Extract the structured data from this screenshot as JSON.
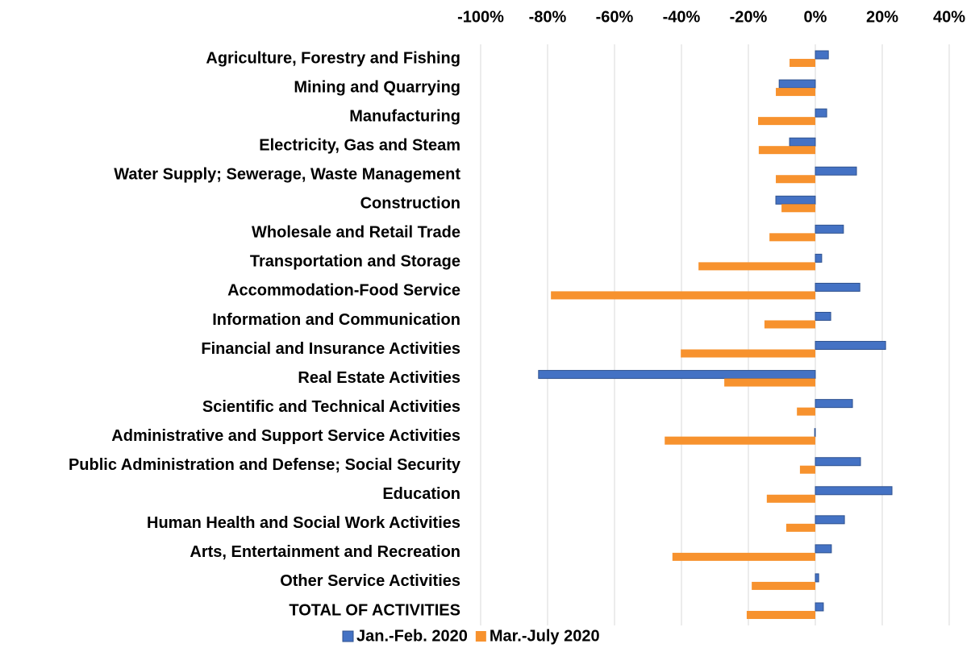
{
  "chart_data": {
    "type": "hbar",
    "categories": [
      "Agriculture, Forestry and Fishing",
      "Mining and Quarrying",
      "Manufacturing",
      "Electricity, Gas and Steam",
      "Water Supply; Sewerage, Waste Management",
      "Construction",
      "Wholesale and Retail Trade",
      "Transportation and Storage",
      "Accommodation-Food Service",
      "Information and Communication",
      "Financial and Insurance Activities",
      "Real Estate Activities",
      "Scientific and Technical Activities",
      "Administrative and Support Service Activities",
      "Public Administration and Defense; Social Security",
      "Education",
      "Human Health and Social Work Activities",
      "Arts, Entertainment and Recreation",
      "Other Service Activities",
      "TOTAL OF ACTIVITIES"
    ],
    "series": [
      {
        "name": "Jan.-Feb. 2020",
        "color": "#4472c4",
        "values": [
          3.9,
          -10.8,
          3.4,
          -7.7,
          12.3,
          -11.8,
          8.4,
          1.9,
          13.3,
          4.6,
          21,
          -82.7,
          11.1,
          -0.2,
          13.5,
          22.9,
          8.7,
          4.8,
          1,
          2.4
        ]
      },
      {
        "name": "Mar.-July 2020",
        "color": "#f7922e",
        "values": [
          -7.7,
          -11.8,
          -17.1,
          -16.9,
          -11.8,
          -10.1,
          -13.7,
          -34.9,
          -79,
          -15.2,
          -40.2,
          -27.2,
          -5.5,
          -45,
          -4.6,
          -14.5,
          -8.7,
          -42.7,
          -19,
          -20.5
        ]
      }
    ],
    "xlim": [
      -100,
      40
    ],
    "xticks": [
      {
        "value": -100,
        "label": "-100%"
      },
      {
        "value": -80,
        "label": "-80%"
      },
      {
        "value": -60,
        "label": "-60%"
      },
      {
        "value": -40,
        "label": "-40%"
      },
      {
        "value": -20,
        "label": "-20%"
      },
      {
        "value": 0,
        "label": "0%"
      },
      {
        "value": 20,
        "label": "20%"
      },
      {
        "value": 40,
        "label": "40%"
      }
    ],
    "grid": true,
    "legend": "bottom"
  }
}
